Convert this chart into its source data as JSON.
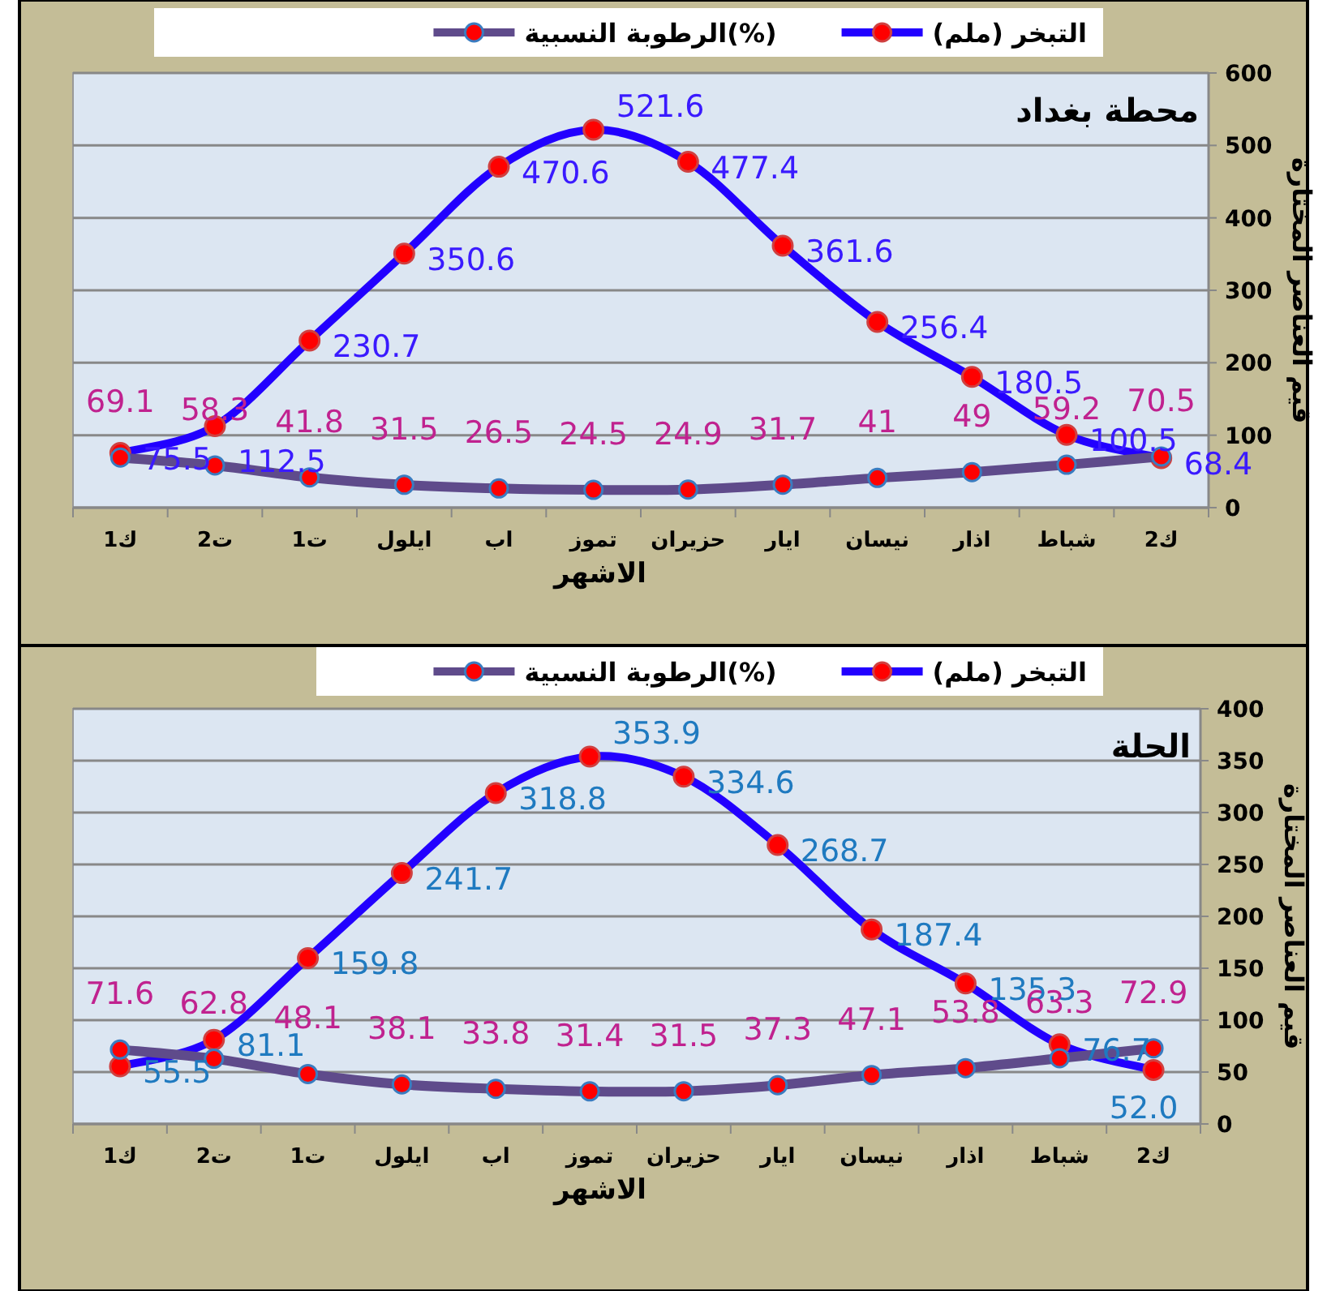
{
  "chart_data": [
    {
      "type": "line",
      "title": "محطة بغداد",
      "xlabel": "الاشهر",
      "ylabel": "قيم العناصر المختارة",
      "categories": [
        "ك1",
        "ت2",
        "ت1",
        "ايلول",
        "اب",
        "تموز",
        "حزيران",
        "ايار",
        "نيسان",
        "اذار",
        "شباط",
        "ك2"
      ],
      "ylim": [
        0,
        600
      ],
      "yticks": [
        0,
        100,
        200,
        300,
        400,
        500,
        600
      ],
      "grid": "y",
      "legend": "top",
      "marker": "circle",
      "line_style": "solid",
      "series": [
        {
          "name": "التبخر (ملم)",
          "color": "#2200ff",
          "values": [
            75.5,
            112.5,
            230.7,
            350.6,
            470.6,
            521.6,
            477.4,
            361.6,
            256.4,
            180.5,
            100.5,
            68.4
          ],
          "value_labels": [
            "75.5",
            "112.5",
            "230.7",
            "350.6",
            "470.6",
            "521.6",
            "477.4",
            "361.6",
            "256.4",
            "180.5",
            "100.5",
            "68.4"
          ]
        },
        {
          "name": "الرطوبة النسبية(%)",
          "color": "#5f4b8b",
          "values": [
            69.1,
            58.3,
            41.8,
            31.5,
            26.5,
            24.5,
            24.9,
            31.7,
            41,
            49,
            59.2,
            70.5
          ],
          "value_labels": [
            "69.1",
            "58.3",
            "41.8",
            "31.5",
            "26.5",
            "24.5",
            "24.9",
            "31.7",
            "41",
            "49",
            "59.2",
            "70.5"
          ]
        }
      ]
    },
    {
      "type": "line",
      "title": "الحلة",
      "xlabel": "الاشهر",
      "ylabel": "قيم العناصر المختارة",
      "categories": [
        "ك1",
        "ت2",
        "ت1",
        "ايلول",
        "اب",
        "تموز",
        "حزيران",
        "ايار",
        "نيسان",
        "اذار",
        "شباط",
        "ك2"
      ],
      "ylim": [
        0,
        400
      ],
      "yticks": [
        0,
        50,
        100,
        150,
        200,
        250,
        300,
        350,
        400
      ],
      "grid": "y",
      "legend": "top",
      "marker": "circle",
      "line_style": "solid",
      "series": [
        {
          "name": "التبخر (ملم)",
          "color": "#2200ff",
          "values": [
            55.5,
            81.1,
            159.8,
            241.7,
            318.8,
            353.9,
            334.6,
            268.7,
            187.4,
            135.3,
            76.7,
            52.0
          ],
          "value_labels": [
            "55.5",
            "81.1",
            "159.8",
            "241.7",
            "318.8",
            "353.9",
            "334.6",
            "268.7",
            "187.4",
            "135.3",
            "76.7",
            "52.0"
          ]
        },
        {
          "name": "الرطوبة النسبية(%)",
          "color": "#5f4b8b",
          "values": [
            71.6,
            62.8,
            48.1,
            38.1,
            33.8,
            31.4,
            31.5,
            37.3,
            47.1,
            53.8,
            63.3,
            72.9
          ],
          "value_labels": [
            "71.6",
            "62.8",
            "48.1",
            "38.1",
            "33.8",
            "31.4",
            "31.5",
            "37.3",
            "47.1",
            "53.8",
            "63.3",
            "72.9"
          ]
        }
      ]
    }
  ]
}
